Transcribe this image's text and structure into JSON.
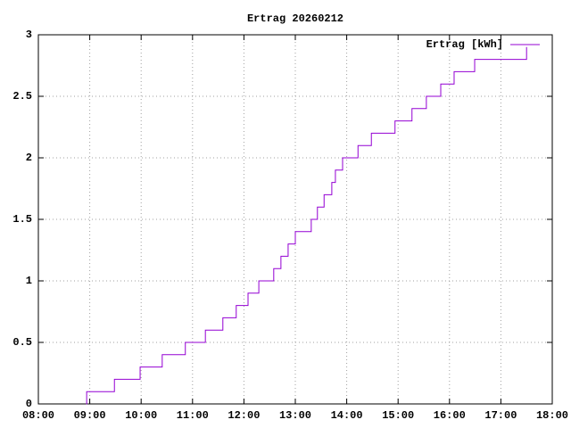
{
  "chart_data": {
    "type": "step",
    "title": "Ertrag 20260212",
    "series": [
      {
        "name": "Ertrag [kWh]",
        "color": "#9400d3",
        "x": [
          8.93,
          8.94,
          9.48,
          9.98,
          10.41,
          10.86,
          11.25,
          11.59,
          11.85,
          12.08,
          12.29,
          12.58,
          12.72,
          12.86,
          13.0,
          13.31,
          13.43,
          13.56,
          13.71,
          13.78,
          13.92,
          14.22,
          14.48,
          14.94,
          15.27,
          15.55,
          15.83,
          16.09,
          16.49,
          17.5
        ],
        "values": [
          0,
          0.1,
          0.2,
          0.3,
          0.4,
          0.5,
          0.6,
          0.7,
          0.8,
          0.9,
          1.0,
          1.1,
          1.2,
          1.3,
          1.4,
          1.5,
          1.6,
          1.7,
          1.8,
          1.9,
          2.0,
          2.1,
          2.2,
          2.3,
          2.4,
          2.5,
          2.6,
          2.7,
          2.8,
          2.9
        ]
      }
    ],
    "xlim": [
      8,
      18
    ],
    "xticks": [
      {
        "value": 8,
        "label": "08:00"
      },
      {
        "value": 9,
        "label": "09:00"
      },
      {
        "value": 10,
        "label": "10:00"
      },
      {
        "value": 11,
        "label": "11:00"
      },
      {
        "value": 12,
        "label": "12:00"
      },
      {
        "value": 13,
        "label": "13:00"
      },
      {
        "value": 14,
        "label": "14:00"
      },
      {
        "value": 15,
        "label": "15:00"
      },
      {
        "value": 16,
        "label": "16:00"
      },
      {
        "value": 17,
        "label": "17:00"
      },
      {
        "value": 18,
        "label": "18:00"
      }
    ],
    "ylim": [
      0,
      3
    ],
    "yticks": [
      0,
      0.5,
      1,
      1.5,
      2,
      2.5,
      3
    ],
    "grid": true,
    "legend": "top-right"
  }
}
